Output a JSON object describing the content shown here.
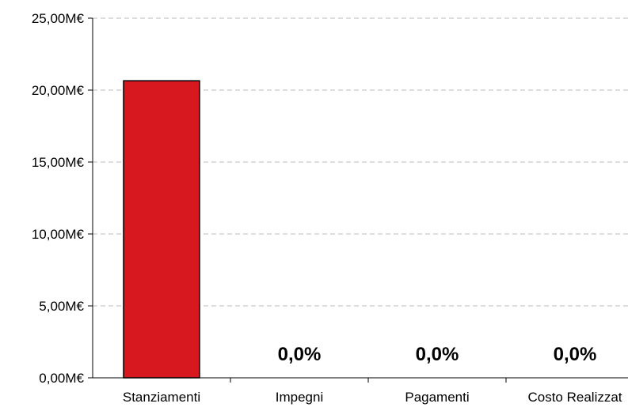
{
  "chart_data": {
    "type": "bar",
    "categories": [
      "Stanziamenti",
      "Impegni",
      "Pagamenti",
      "Costo Realizzat"
    ],
    "values": [
      20.65,
      0,
      0,
      0
    ],
    "data_labels": [
      "",
      "0,0%",
      "0,0%",
      "0,0%"
    ],
    "y_ticks": [
      "0,00M€",
      "5,00M€",
      "10,00M€",
      "15,00M€",
      "20,00M€",
      "25,00M€"
    ],
    "ylim": [
      0,
      25
    ],
    "title": "",
    "xlabel": "",
    "ylabel": "",
    "grid": true,
    "grid_style": "dashed",
    "bar_color": "#d7191f",
    "bar_edge_color": "#000000",
    "grid_color": "#bbbbbb"
  }
}
